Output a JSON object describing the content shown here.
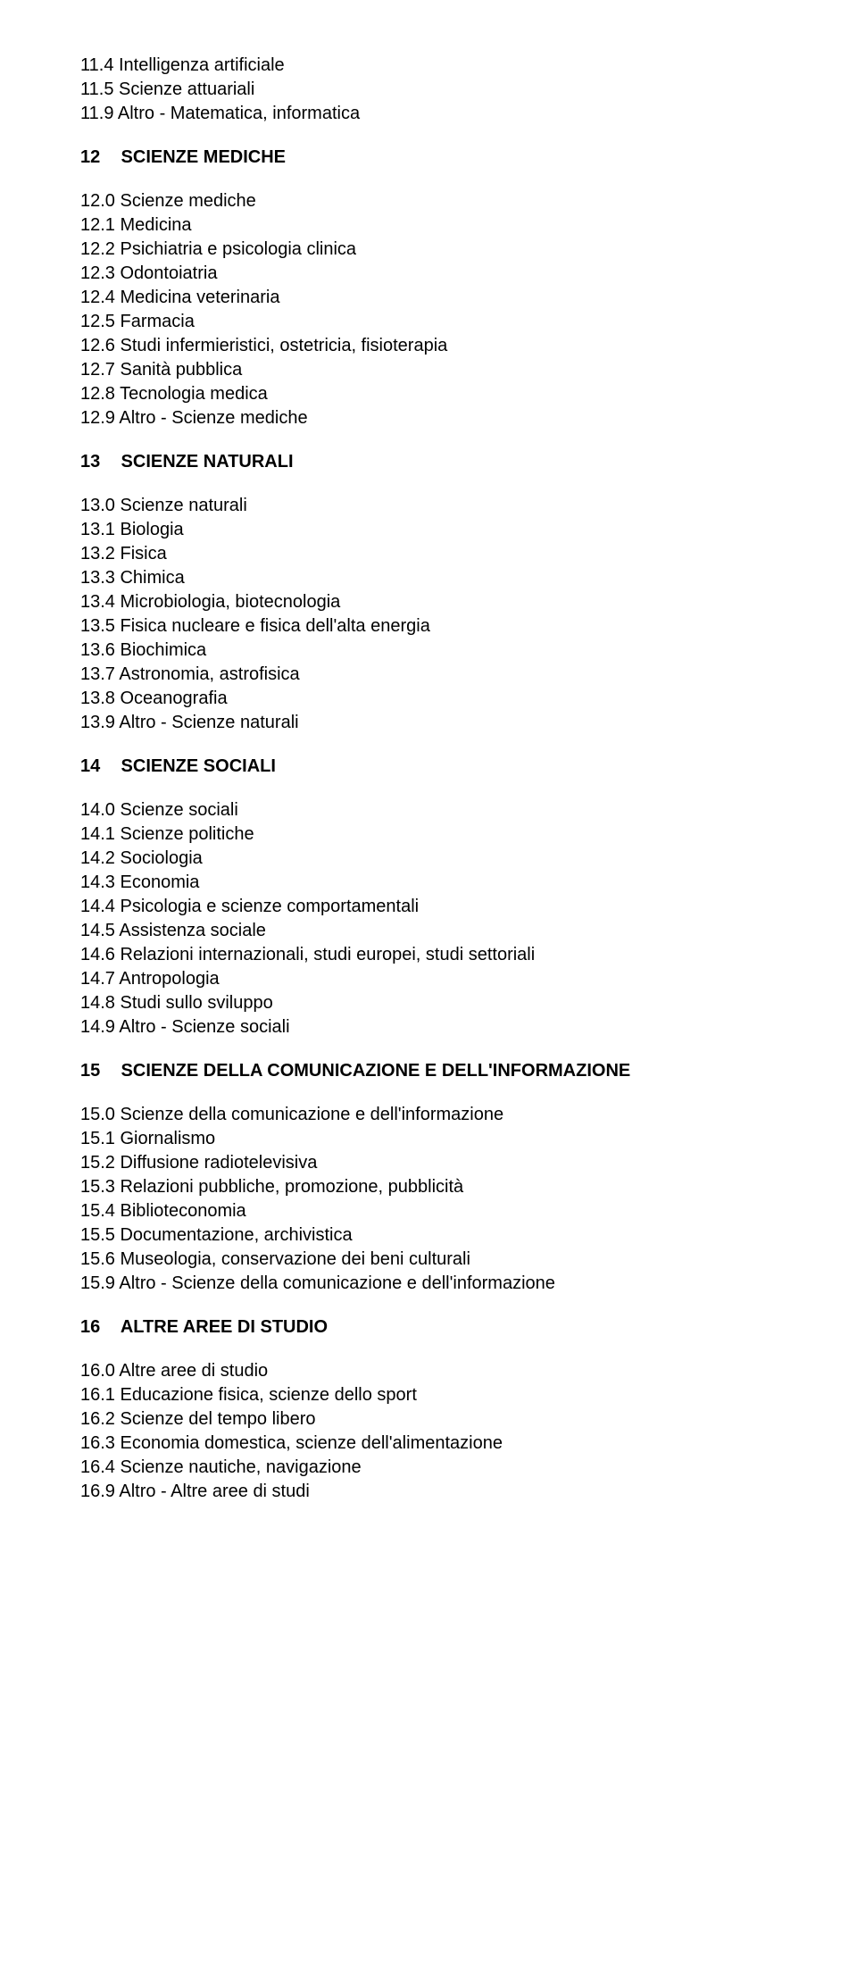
{
  "text_color": "#000000",
  "background_color": "#ffffff",
  "font_family": "Arial, Helvetica, sans-serif",
  "font_size_pt": 15,
  "sections": [
    {
      "pre_items": [
        "11.4 Intelligenza artificiale",
        "11.5 Scienze attuariali",
        "11.9 Altro - Matematica, informatica"
      ],
      "heading_num": "12",
      "heading_label": "SCIENZE MEDICHE",
      "items": [
        "12.0 Scienze mediche",
        "12.1 Medicina",
        "12.2 Psichiatria e psicologia clinica",
        "12.3 Odontoiatria",
        "12.4 Medicina veterinaria",
        "12.5 Farmacia",
        "12.6 Studi infermieristici, ostetricia, fisioterapia",
        "12.7 Sanità pubblica",
        "12.8 Tecnologia medica",
        "12.9 Altro - Scienze mediche"
      ]
    },
    {
      "heading_num": "13",
      "heading_label": "SCIENZE NATURALI",
      "items": [
        "13.0 Scienze naturali",
        "13.1 Biologia",
        "13.2 Fisica",
        "13.3 Chimica",
        "13.4 Microbiologia, biotecnologia",
        "13.5 Fisica nucleare e fisica dell'alta energia",
        "13.6 Biochimica",
        "13.7 Astronomia, astrofisica",
        "13.8 Oceanografia",
        "13.9 Altro - Scienze naturali"
      ]
    },
    {
      "heading_num": "14",
      "heading_label": "SCIENZE SOCIALI",
      "items": [
        "14.0 Scienze sociali",
        "14.1 Scienze politiche",
        "14.2 Sociologia",
        "14.3 Economia",
        "14.4 Psicologia e scienze comportamentali",
        "14.5 Assistenza sociale",
        "14.6 Relazioni internazionali, studi europei, studi settoriali",
        "14.7 Antropologia",
        "14.8 Studi sullo sviluppo",
        "14.9 Altro - Scienze sociali"
      ]
    },
    {
      "heading_num": "15",
      "heading_label": "SCIENZE DELLA COMUNICAZIONE E DELL'INFORMAZIONE",
      "items": [
        "15.0 Scienze della comunicazione e dell'informazione",
        "15.1 Giornalismo",
        "15.2 Diffusione radiotelevisiva",
        "15.3 Relazioni pubbliche, promozione, pubblicità",
        "15.4 Biblioteconomia",
        "15.5 Documentazione, archivistica",
        "15.6 Museologia, conservazione dei beni culturali",
        "15.9 Altro - Scienze della comunicazione e dell'informazione"
      ]
    },
    {
      "heading_num": "16",
      "heading_label": "ALTRE AREE DI STUDIO",
      "items": [
        "16.0 Altre aree di studio",
        "16.1 Educazione fisica, scienze dello sport",
        "16.2 Scienze del tempo libero",
        "16.3 Economia domestica, scienze dell'alimentazione",
        "16.4 Scienze nautiche, navigazione",
        "16.9 Altro - Altre aree di studi"
      ]
    }
  ]
}
